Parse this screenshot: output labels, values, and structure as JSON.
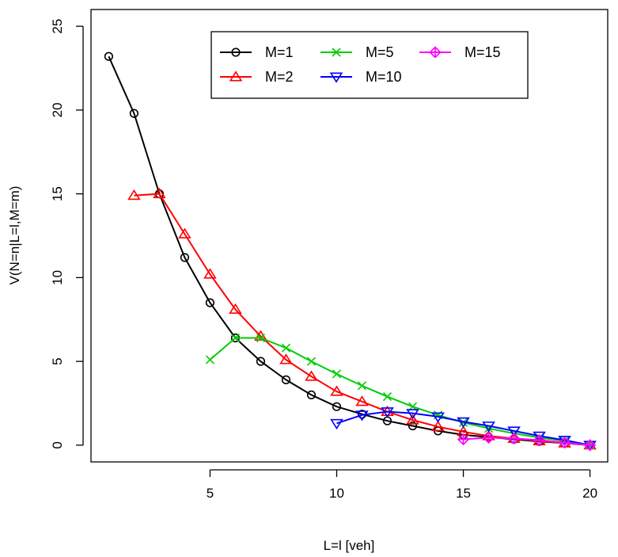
{
  "chart_data": {
    "type": "line",
    "title": "",
    "xlabel": "L=l [veh]",
    "ylabel": "V(N=n|L=l,M=m)",
    "xlim": [
      0.3,
      20.7
    ],
    "ylim": [
      -1.0,
      26.0
    ],
    "xticks": [
      5,
      10,
      15,
      20
    ],
    "yticks": [
      0,
      5,
      10,
      15,
      20,
      25
    ],
    "legend_position": "top-center",
    "series": [
      {
        "name": "M=1",
        "color": "#000000",
        "marker": "circle",
        "x": [
          1,
          2,
          3,
          4,
          5,
          6,
          7,
          8,
          9,
          10,
          11,
          12,
          13,
          14,
          15,
          16,
          17,
          18,
          19,
          20
        ],
        "y": [
          23.2,
          19.8,
          15.0,
          11.2,
          8.5,
          6.4,
          5.0,
          3.9,
          3.0,
          2.3,
          1.85,
          1.45,
          1.15,
          0.85,
          0.62,
          0.48,
          0.35,
          0.22,
          0.12,
          0.0
        ]
      },
      {
        "name": "M=2",
        "color": "#ff0000",
        "marker": "triangle-up",
        "x": [
          2,
          3,
          4,
          5,
          6,
          7,
          8,
          9,
          10,
          11,
          12,
          13,
          14,
          15,
          16,
          17,
          18,
          19,
          20
        ],
        "y": [
          14.9,
          15.0,
          12.6,
          10.2,
          8.1,
          6.5,
          5.1,
          4.1,
          3.2,
          2.6,
          2.0,
          1.5,
          1.1,
          0.8,
          0.55,
          0.4,
          0.25,
          0.12,
          0.0
        ]
      },
      {
        "name": "M=5",
        "color": "#00cc00",
        "marker": "x",
        "x": [
          5,
          6,
          7,
          8,
          9,
          10,
          11,
          12,
          13,
          14,
          15,
          16,
          17,
          18,
          19,
          20
        ],
        "y": [
          5.1,
          6.4,
          6.4,
          5.8,
          5.0,
          4.25,
          3.55,
          2.9,
          2.3,
          1.8,
          1.35,
          1.0,
          0.7,
          0.45,
          0.25,
          0.0
        ]
      },
      {
        "name": "M=10",
        "color": "#0000ff",
        "marker": "triangle-down",
        "x": [
          10,
          11,
          12,
          13,
          14,
          15,
          16,
          17,
          18,
          19,
          20
        ],
        "y": [
          1.3,
          1.8,
          2.0,
          1.9,
          1.7,
          1.4,
          1.15,
          0.85,
          0.55,
          0.3,
          0.0
        ]
      },
      {
        "name": "M=15",
        "color": "#ff00ff",
        "marker": "diamond-plus",
        "x": [
          15,
          16,
          17,
          18,
          19,
          20
        ],
        "y": [
          0.35,
          0.45,
          0.4,
          0.3,
          0.15,
          0.0
        ]
      }
    ]
  }
}
